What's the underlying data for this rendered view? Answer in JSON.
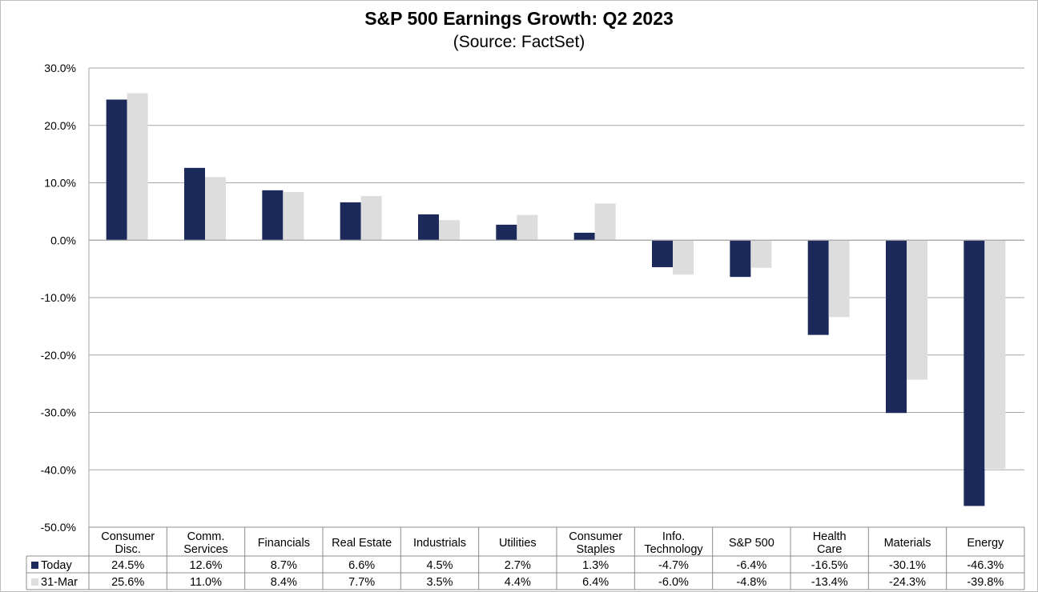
{
  "chart_data": {
    "type": "bar",
    "title": "S&P 500 Earnings Growth:  Q2 2023",
    "subtitle": "(Source:  FactSet)",
    "categories": [
      [
        "Consumer",
        "Disc."
      ],
      [
        "Comm.",
        "Services"
      ],
      [
        "Financials"
      ],
      [
        "Real Estate"
      ],
      [
        "Industrials"
      ],
      [
        "Utilities"
      ],
      [
        "Consumer",
        "Staples"
      ],
      [
        "Info.",
        "Technology"
      ],
      [
        "S&P 500"
      ],
      [
        "Health",
        "Care"
      ],
      [
        "Materials"
      ],
      [
        "Energy"
      ]
    ],
    "series": [
      {
        "name": "Today",
        "color": "#1b2a5a",
        "values": [
          24.5,
          12.6,
          8.7,
          6.6,
          4.5,
          2.7,
          1.3,
          -4.7,
          -6.4,
          -16.5,
          -30.1,
          -46.3
        ],
        "labels": [
          "24.5%",
          "12.6%",
          "8.7%",
          "6.6%",
          "4.5%",
          "2.7%",
          "1.3%",
          "-4.7%",
          "-6.4%",
          "-16.5%",
          "-30.1%",
          "-46.3%"
        ]
      },
      {
        "name": "31-Mar",
        "color": "#dddddd",
        "values": [
          25.6,
          11.0,
          8.4,
          7.7,
          3.5,
          4.4,
          6.4,
          -6.0,
          -4.8,
          -13.4,
          -24.3,
          -39.8
        ],
        "labels": [
          "25.6%",
          "11.0%",
          "8.4%",
          "7.7%",
          "3.5%",
          "4.4%",
          "6.4%",
          "-6.0%",
          "-4.8%",
          "-13.4%",
          "-24.3%",
          "-39.8%"
        ]
      }
    ],
    "ylim": [
      -50,
      30
    ],
    "yticks": [
      30,
      20,
      10,
      0,
      -10,
      -20,
      -30,
      -40,
      -50
    ],
    "ytick_labels": [
      "30.0%",
      "20.0%",
      "10.0%",
      "0.0%",
      "-10.0%",
      "-20.0%",
      "-30.0%",
      "-40.0%",
      "-50.0%"
    ],
    "grid": true,
    "legend": "data-table"
  }
}
